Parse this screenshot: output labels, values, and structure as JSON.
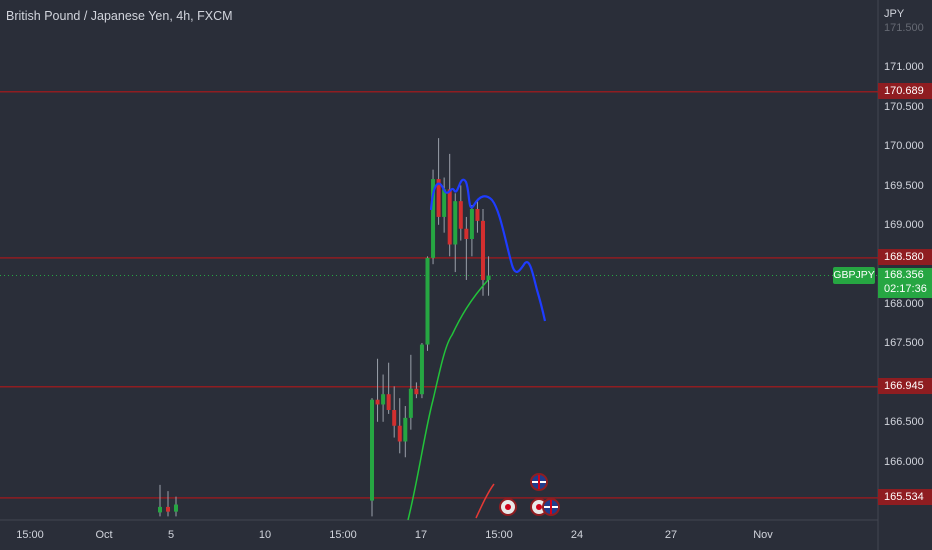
{
  "header": {
    "title": "British Pound / Japanese Yen, 4h, FXCM",
    "currency": "JPY"
  },
  "price_axis": {
    "ticks": [
      "171.500",
      "171.000",
      "170.500",
      "170.000",
      "169.500",
      "169.000",
      "168.000",
      "167.500",
      "166.500",
      "166.000"
    ],
    "faded_tick": "171.500"
  },
  "time_axis": {
    "ticks": [
      "15:00",
      "Oct",
      "5",
      "10",
      "15:00",
      "17",
      "15:00",
      "24",
      "27",
      "Nov"
    ]
  },
  "levels": [
    {
      "price": 170.689,
      "label": "170.689"
    },
    {
      "price": 168.58,
      "label": "168.580"
    },
    {
      "price": 166.945,
      "label": "166.945"
    },
    {
      "price": 165.534,
      "label": "165.534"
    }
  ],
  "current_price": {
    "symbol": "GBPJPY",
    "price": "168.356",
    "countdown": "02:17:36"
  },
  "colors": {
    "background": "#2a2e39",
    "level_line": "#8f1d21",
    "bull": "#26a642",
    "bear": "#d32f2f",
    "ma": "#22c33a",
    "drawing": "#1e3cff",
    "text": "#d1d4dc"
  },
  "events": [
    {
      "icon": "uk-flag-icon",
      "kind": "uk"
    },
    {
      "icon": "event-dot-icon",
      "kind": "dot"
    },
    {
      "icon": "event-dot-icon",
      "kind": "dot"
    },
    {
      "icon": "uk-flag-icon",
      "kind": "uk"
    }
  ],
  "chart_data": {
    "type": "candlestick",
    "price_range": [
      165.3,
      171.6
    ],
    "candles": [
      {
        "o": 165.35,
        "h": 165.7,
        "l": 165.3,
        "c": 165.42
      },
      {
        "o": 165.42,
        "h": 165.62,
        "l": 165.3,
        "c": 165.36
      },
      {
        "o": 165.36,
        "h": 165.55,
        "l": 165.3,
        "c": 165.45
      },
      {
        "o": 165.5,
        "h": 166.8,
        "l": 165.3,
        "c": 166.78
      },
      {
        "o": 166.78,
        "h": 167.3,
        "l": 166.5,
        "c": 166.72
      },
      {
        "o": 166.72,
        "h": 167.1,
        "l": 166.5,
        "c": 166.85
      },
      {
        "o": 166.85,
        "h": 167.25,
        "l": 166.6,
        "c": 166.65
      },
      {
        "o": 166.65,
        "h": 166.95,
        "l": 166.3,
        "c": 166.45
      },
      {
        "o": 166.45,
        "h": 166.8,
        "l": 166.1,
        "c": 166.25
      },
      {
        "o": 166.25,
        "h": 166.7,
        "l": 166.05,
        "c": 166.55
      },
      {
        "o": 166.55,
        "h": 167.35,
        "l": 166.4,
        "c": 166.92
      },
      {
        "o": 166.92,
        "h": 167.0,
        "l": 166.8,
        "c": 166.85
      },
      {
        "o": 166.85,
        "h": 167.5,
        "l": 166.8,
        "c": 167.48
      },
      {
        "o": 167.48,
        "h": 168.6,
        "l": 167.4,
        "c": 168.58
      },
      {
        "o": 168.58,
        "h": 169.7,
        "l": 168.5,
        "c": 169.58
      },
      {
        "o": 169.58,
        "h": 170.1,
        "l": 169.0,
        "c": 169.1
      },
      {
        "o": 169.1,
        "h": 169.6,
        "l": 168.9,
        "c": 169.45
      },
      {
        "o": 169.45,
        "h": 169.9,
        "l": 168.6,
        "c": 168.75
      },
      {
        "o": 168.75,
        "h": 169.4,
        "l": 168.4,
        "c": 169.3
      },
      {
        "o": 169.3,
        "h": 169.5,
        "l": 168.8,
        "c": 168.95
      },
      {
        "o": 168.95,
        "h": 169.1,
        "l": 168.3,
        "c": 168.82
      },
      {
        "o": 168.82,
        "h": 169.25,
        "l": 168.6,
        "c": 169.2
      },
      {
        "o": 169.2,
        "h": 169.3,
        "l": 168.9,
        "c": 169.05
      },
      {
        "o": 169.05,
        "h": 169.2,
        "l": 168.1,
        "c": 168.3
      },
      {
        "o": 168.3,
        "h": 168.6,
        "l": 168.1,
        "c": 168.356
      }
    ]
  }
}
